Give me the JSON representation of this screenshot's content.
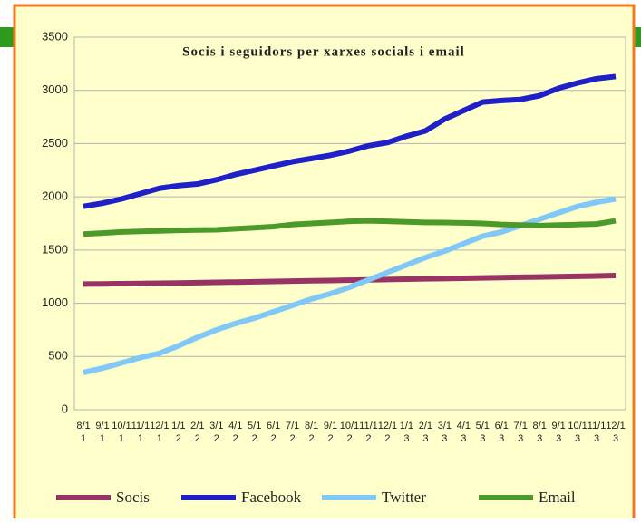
{
  "chart_data": {
    "type": "line",
    "title": "Socis i seguidors per xarxes socials i email",
    "categories": [
      "8/11",
      "9/11",
      "10/11",
      "11/11",
      "12/11",
      "1/12",
      "2/12",
      "3/12",
      "4/12",
      "5/12",
      "6/12",
      "7/12",
      "8/12",
      "9/12",
      "10/12",
      "11/12",
      "12/12",
      "1/13",
      "2/13",
      "3/13",
      "4/13",
      "5/13",
      "6/13",
      "7/13",
      "8/13",
      "9/13",
      "10/13",
      "11/13",
      "12/13"
    ],
    "series": [
      {
        "name": "Socis",
        "color": "#993366",
        "values": [
          1180,
          1182,
          1184,
          1186,
          1188,
          1190,
          1193,
          1196,
          1199,
          1202,
          1205,
          1208,
          1211,
          1214,
          1217,
          1220,
          1223,
          1226,
          1229,
          1232,
          1235,
          1238,
          1241,
          1244,
          1247,
          1250,
          1253,
          1256,
          1260
        ]
      },
      {
        "name": "Facebook",
        "color": "#2020c8",
        "values": [
          1910,
          1940,
          1980,
          2030,
          2080,
          2105,
          2120,
          2160,
          2210,
          2250,
          2290,
          2330,
          2360,
          2390,
          2430,
          2480,
          2510,
          2570,
          2620,
          2730,
          2810,
          2890,
          2905,
          2915,
          2950,
          3020,
          3070,
          3110,
          3130
        ]
      },
      {
        "name": "Twitter",
        "color": "#80c8f8",
        "values": [
          350,
          390,
          440,
          490,
          530,
          600,
          680,
          750,
          810,
          860,
          920,
          980,
          1040,
          1090,
          1150,
          1220,
          1290,
          1360,
          1430,
          1490,
          1560,
          1630,
          1670,
          1730,
          1790,
          1850,
          1910,
          1950,
          1980
        ]
      },
      {
        "name": "Email",
        "color": "#4c9a2a",
        "values": [
          1650,
          1660,
          1670,
          1675,
          1680,
          1685,
          1688,
          1690,
          1700,
          1710,
          1720,
          1740,
          1750,
          1760,
          1770,
          1775,
          1770,
          1765,
          1760,
          1758,
          1755,
          1750,
          1740,
          1735,
          1730,
          1735,
          1740,
          1745,
          1775
        ]
      }
    ],
    "ylim": [
      0,
      3500
    ],
    "yticks": [
      0,
      500,
      1000,
      1500,
      2000,
      2500,
      3000,
      3500
    ],
    "grid": true,
    "legend": "bottom"
  }
}
